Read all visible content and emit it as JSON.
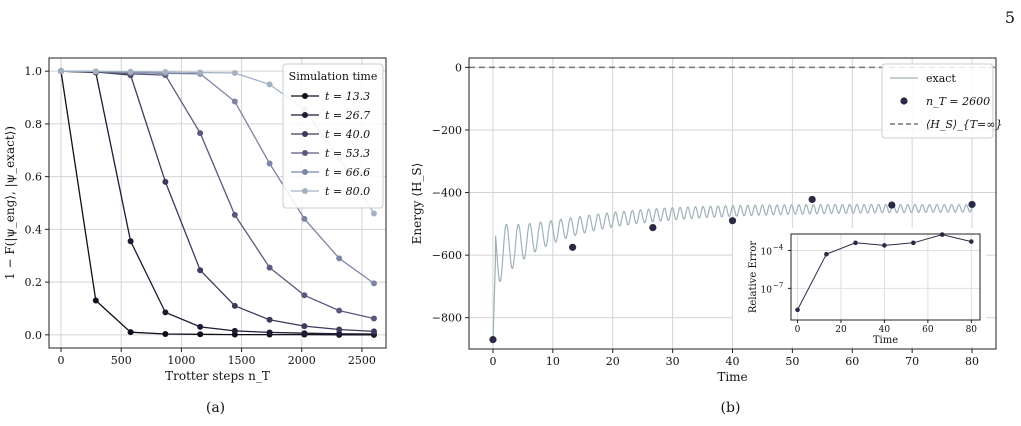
{
  "page_number": "5",
  "chart_data": [
    {
      "type": "line",
      "panel_caption": "(a)",
      "xlabel": "Trotter steps n_T",
      "ylabel": "1 − F(|ψ_eng⟩, |ψ_exact⟩)",
      "xlim": [
        -100,
        2700
      ],
      "ylim": [
        -0.05,
        1.05
      ],
      "xticks": [
        0,
        500,
        1000,
        1500,
        2000,
        2500
      ],
      "yticks": [
        0.0,
        0.2,
        0.4,
        0.6,
        0.8,
        1.0
      ],
      "ytick_labels": [
        "0.0",
        "0.2",
        "0.4",
        "0.6",
        "0.8",
        "1.0"
      ],
      "grid": true,
      "legend": {
        "title": "Simulation time",
        "placement": "top-right"
      },
      "x": [
        0,
        289,
        578,
        867,
        1156,
        1444,
        1733,
        2022,
        2311,
        2600
      ],
      "series": [
        {
          "name": "t = 13.3",
          "color": "#0f0f1c",
          "values": [
            1.0,
            0.13,
            0.01,
            0.003,
            0.002,
            0.001,
            0.001,
            0.001,
            0.0,
            0.0
          ]
        },
        {
          "name": "t = 26.7",
          "color": "#1e1b33",
          "values": [
            1.0,
            0.995,
            0.355,
            0.085,
            0.03,
            0.015,
            0.009,
            0.006,
            0.004,
            0.003
          ]
        },
        {
          "name": "t = 40.0",
          "color": "#3d3a5c",
          "values": [
            1.0,
            0.997,
            0.985,
            0.58,
            0.245,
            0.11,
            0.057,
            0.033,
            0.02,
            0.013
          ]
        },
        {
          "name": "t = 53.3",
          "color": "#5a5a80",
          "values": [
            1.0,
            0.998,
            0.99,
            0.985,
            0.765,
            0.455,
            0.255,
            0.15,
            0.092,
            0.062
          ]
        },
        {
          "name": "t = 66.6",
          "color": "#7c85a3",
          "values": [
            1.0,
            0.999,
            0.995,
            0.992,
            0.99,
            0.885,
            0.65,
            0.44,
            0.29,
            0.195
          ]
        },
        {
          "name": "t = 80.0",
          "color": "#a3b2c3",
          "values": [
            1.0,
            0.999,
            0.998,
            0.997,
            0.995,
            0.993,
            0.95,
            0.855,
            0.67,
            0.46
          ]
        }
      ]
    },
    {
      "type": "line",
      "panel_caption": "(b)",
      "xlabel": "Time",
      "ylabel": "Energy ⟨H_S⟩",
      "xlim": [
        -4,
        84
      ],
      "ylim": [
        -900,
        30
      ],
      "xticks": [
        0,
        10,
        20,
        30,
        40,
        50,
        60,
        70,
        80
      ],
      "yticks": [
        0,
        -200,
        -400,
        -600,
        -800
      ],
      "ytick_labels": [
        "0",
        "−200",
        "−400",
        "−600",
        "−800"
      ],
      "grid": true,
      "legend": {
        "placement": "top-right"
      },
      "series": [
        {
          "name": "exact",
          "kind": "line",
          "color": "#9db3b8"
        },
        {
          "name": "n_T = 2600",
          "kind": "points",
          "color": "#2b2a45",
          "x": [
            0,
            13.3,
            26.7,
            40.0,
            53.3,
            66.6,
            80.0
          ],
          "y": [
            -870,
            -575,
            -512,
            -490,
            -422,
            -440,
            -438
          ]
        },
        {
          "name": "⟨H_S⟩_{T=∞}",
          "kind": "hline",
          "color": "#777777",
          "y": 0
        }
      ],
      "inset": {
        "type": "line",
        "xlabel": "Time",
        "ylabel": "Relative Error",
        "yscale": "log",
        "xlim": [
          -3,
          84
        ],
        "ylim_exp": [
          -9.5,
          -2.7
        ],
        "xticks": [
          0,
          20,
          40,
          60,
          80
        ],
        "yticks_exp": [
          -4,
          -7
        ],
        "ytick_labels": [
          "10",
          "10"
        ],
        "ytick_exponents": [
          "−4",
          "−7"
        ],
        "x": [
          0,
          13.3,
          26.7,
          40.0,
          53.3,
          66.6,
          80.0
        ],
        "values": [
          2e-09,
          5e-05,
          0.0004,
          0.00025,
          0.0004,
          0.0018,
          0.0005
        ]
      }
    }
  ]
}
